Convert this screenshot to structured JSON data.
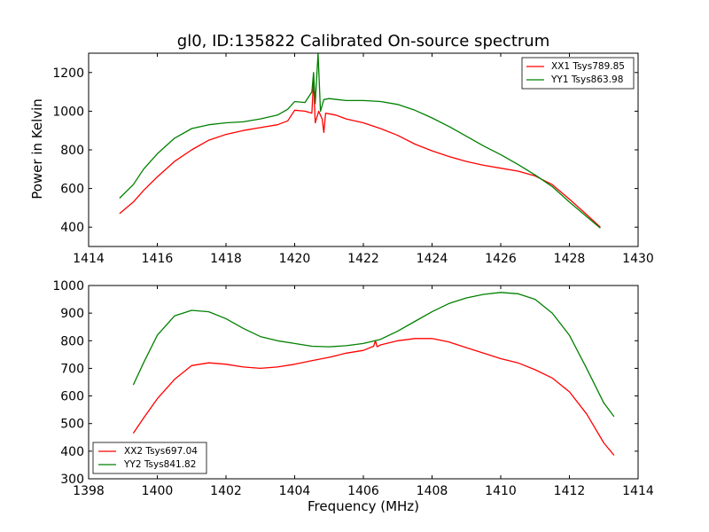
{
  "chart_data": [
    {
      "type": "line",
      "title": "gl0, ID:135822 Calibrated On-source spectrum",
      "xlabel": "",
      "ylabel": "Power in Kelvin",
      "xlim": [
        1414,
        1430
      ],
      "ylim": [
        300,
        1300
      ],
      "xticks": [
        1414,
        1416,
        1418,
        1420,
        1422,
        1424,
        1426,
        1428,
        1430
      ],
      "yticks": [
        400,
        600,
        800,
        1000,
        1200
      ],
      "grid": false,
      "legend_position": "top-right",
      "series": [
        {
          "name": "XX1 Tsys789.85",
          "color": "#ff0000",
          "points": [
            [
              1414.9,
              470
            ],
            [
              1415.3,
              530
            ],
            [
              1415.6,
              590
            ],
            [
              1416.0,
              660
            ],
            [
              1416.5,
              740
            ],
            [
              1417.0,
              800
            ],
            [
              1417.5,
              850
            ],
            [
              1418.0,
              880
            ],
            [
              1418.5,
              900
            ],
            [
              1419.0,
              915
            ],
            [
              1419.5,
              930
            ],
            [
              1419.8,
              950
            ],
            [
              1420.0,
              1005
            ],
            [
              1420.3,
              1000
            ],
            [
              1420.5,
              990
            ],
            [
              1420.55,
              1160
            ],
            [
              1420.6,
              940
            ],
            [
              1420.7,
              1000
            ],
            [
              1420.8,
              960
            ],
            [
              1420.85,
              890
            ],
            [
              1420.9,
              990
            ],
            [
              1421.2,
              980
            ],
            [
              1421.5,
              960
            ],
            [
              1422.0,
              940
            ],
            [
              1422.5,
              910
            ],
            [
              1423.0,
              875
            ],
            [
              1423.5,
              830
            ],
            [
              1424.0,
              795
            ],
            [
              1424.5,
              765
            ],
            [
              1425.0,
              740
            ],
            [
              1425.5,
              720
            ],
            [
              1426.0,
              705
            ],
            [
              1426.5,
              690
            ],
            [
              1427.0,
              665
            ],
            [
              1427.5,
              620
            ],
            [
              1428.0,
              545
            ],
            [
              1428.5,
              465
            ],
            [
              1428.9,
              400
            ]
          ]
        },
        {
          "name": "YY1 Tsys863.98",
          "color": "#008000",
          "points": [
            [
              1414.9,
              550
            ],
            [
              1415.3,
              620
            ],
            [
              1415.6,
              700
            ],
            [
              1416.0,
              780
            ],
            [
              1416.5,
              860
            ],
            [
              1417.0,
              910
            ],
            [
              1417.5,
              930
            ],
            [
              1418.0,
              940
            ],
            [
              1418.5,
              945
            ],
            [
              1419.0,
              960
            ],
            [
              1419.5,
              980
            ],
            [
              1419.8,
              1010
            ],
            [
              1420.0,
              1050
            ],
            [
              1420.3,
              1045
            ],
            [
              1420.5,
              1100
            ],
            [
              1420.55,
              1200
            ],
            [
              1420.6,
              1040
            ],
            [
              1420.68,
              1300
            ],
            [
              1420.75,
              1000
            ],
            [
              1420.85,
              1060
            ],
            [
              1421.0,
              1065
            ],
            [
              1421.5,
              1055
            ],
            [
              1422.0,
              1055
            ],
            [
              1422.5,
              1050
            ],
            [
              1423.0,
              1035
            ],
            [
              1423.5,
              1005
            ],
            [
              1424.0,
              965
            ],
            [
              1424.5,
              920
            ],
            [
              1425.0,
              870
            ],
            [
              1425.5,
              820
            ],
            [
              1426.0,
              775
            ],
            [
              1426.5,
              725
            ],
            [
              1427.0,
              670
            ],
            [
              1427.5,
              610
            ],
            [
              1428.0,
              530
            ],
            [
              1428.5,
              455
            ],
            [
              1428.9,
              395
            ]
          ]
        }
      ]
    },
    {
      "type": "line",
      "title": "",
      "xlabel": "Frequency (MHz)",
      "ylabel": "",
      "xlim": [
        1398,
        1414
      ],
      "ylim": [
        300,
        1000
      ],
      "xticks": [
        1398,
        1400,
        1402,
        1404,
        1406,
        1408,
        1410,
        1412,
        1414
      ],
      "yticks": [
        300,
        400,
        500,
        600,
        700,
        800,
        900,
        1000
      ],
      "grid": false,
      "legend_position": "bottom-left",
      "series": [
        {
          "name": "XX2 Tsys697.04",
          "color": "#ff0000",
          "points": [
            [
              1399.3,
              465
            ],
            [
              1399.6,
              520
            ],
            [
              1400.0,
              590
            ],
            [
              1400.5,
              660
            ],
            [
              1401.0,
              710
            ],
            [
              1401.5,
              720
            ],
            [
              1402.0,
              715
            ],
            [
              1402.5,
              705
            ],
            [
              1403.0,
              700
            ],
            [
              1403.5,
              705
            ],
            [
              1404.0,
              715
            ],
            [
              1404.5,
              728
            ],
            [
              1405.0,
              740
            ],
            [
              1405.5,
              755
            ],
            [
              1406.0,
              765
            ],
            [
              1406.3,
              780
            ],
            [
              1406.35,
              800
            ],
            [
              1406.4,
              778
            ],
            [
              1406.5,
              785
            ],
            [
              1407.0,
              800
            ],
            [
              1407.5,
              808
            ],
            [
              1408.0,
              808
            ],
            [
              1408.5,
              795
            ],
            [
              1409.0,
              775
            ],
            [
              1409.5,
              755
            ],
            [
              1410.0,
              735
            ],
            [
              1410.5,
              720
            ],
            [
              1411.0,
              695
            ],
            [
              1411.5,
              665
            ],
            [
              1412.0,
              615
            ],
            [
              1412.5,
              535
            ],
            [
              1413.0,
              430
            ],
            [
              1413.3,
              385
            ]
          ]
        },
        {
          "name": "YY2 Tsys841.82",
          "color": "#008000",
          "points": [
            [
              1399.3,
              640
            ],
            [
              1399.6,
              720
            ],
            [
              1400.0,
              820
            ],
            [
              1400.5,
              890
            ],
            [
              1401.0,
              910
            ],
            [
              1401.5,
              905
            ],
            [
              1402.0,
              880
            ],
            [
              1402.5,
              845
            ],
            [
              1403.0,
              815
            ],
            [
              1403.5,
              800
            ],
            [
              1404.0,
              790
            ],
            [
              1404.5,
              780
            ],
            [
              1405.0,
              778
            ],
            [
              1405.5,
              782
            ],
            [
              1406.0,
              790
            ],
            [
              1406.5,
              805
            ],
            [
              1407.0,
              835
            ],
            [
              1407.5,
              870
            ],
            [
              1408.0,
              905
            ],
            [
              1408.5,
              935
            ],
            [
              1409.0,
              955
            ],
            [
              1409.5,
              968
            ],
            [
              1410.0,
              975
            ],
            [
              1410.5,
              970
            ],
            [
              1411.0,
              950
            ],
            [
              1411.5,
              900
            ],
            [
              1412.0,
              820
            ],
            [
              1412.5,
              700
            ],
            [
              1413.0,
              575
            ],
            [
              1413.3,
              525
            ]
          ]
        }
      ]
    }
  ]
}
